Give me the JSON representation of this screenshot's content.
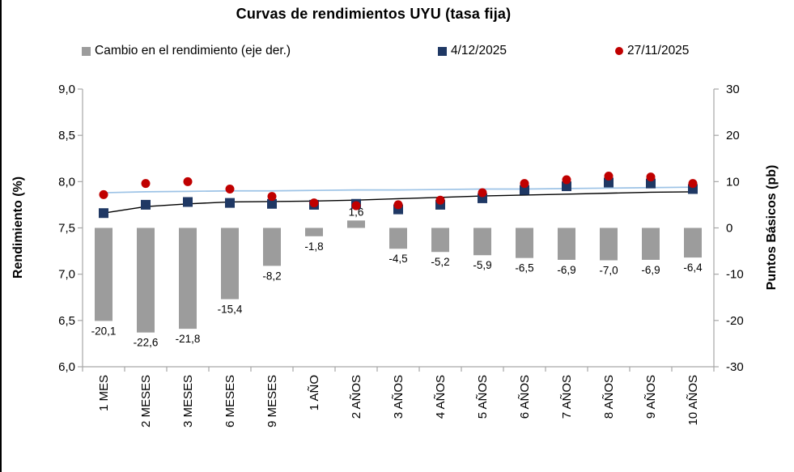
{
  "chart_data": {
    "type": "combo (bar + scatter with smooth lines)",
    "title": "Curvas de rendimientos UYU (tasa fija)",
    "background": "#FFFFFF",
    "grid": false,
    "legend_position": "top",
    "categories": [
      "1 MES",
      "2 MESES",
      "3 MESES",
      "6 MESES",
      "9 MESES",
      "1 AÑO",
      "2 AÑOS",
      "3 AÑOS",
      "4 AÑOS",
      "5 AÑOS",
      "6 AÑOS",
      "7 AÑOS",
      "8 AÑOS",
      "9 AÑOS",
      "10 AÑOS"
    ],
    "left_axis": {
      "title": "Rendimiento (%)",
      "min": 6.0,
      "max": 9.0,
      "step": 0.5,
      "tick_labels": [
        "9,0",
        "8,5",
        "8,0",
        "7,5",
        "7,0",
        "6,5",
        "6,0"
      ]
    },
    "right_axis": {
      "title": "Puntos Básicos (pb)",
      "min": -30,
      "max": 30,
      "step": 10,
      "tick_labels": [
        "30",
        "20",
        "10",
        "0",
        "-10",
        "-20",
        "-30"
      ]
    },
    "series": [
      {
        "name": "Cambio en el rendimiento (eje der.)",
        "type": "bar",
        "axis": "right",
        "color": "#9C9C9C",
        "values": [
          -20.1,
          -22.6,
          -21.8,
          -15.4,
          -8.2,
          -1.8,
          1.6,
          -4.5,
          -5.2,
          -5.9,
          -6.5,
          -6.9,
          -7.0,
          -6.9,
          -6.4
        ],
        "value_labels": [
          "-20,1",
          "-22,6",
          "-21,8",
          "-15,4",
          "-8,2",
          "-1,8",
          "1,6",
          "-4,5",
          "-5,2",
          "-5,9",
          "-6,5",
          "-6,9",
          "-7,0",
          "-6,9",
          "-6,4"
        ]
      },
      {
        "name": "4/12/2025",
        "type": "scatter",
        "marker": "square",
        "axis": "left",
        "color": "#1F3864",
        "values": [
          7.66,
          7.75,
          7.78,
          7.77,
          7.76,
          7.75,
          7.76,
          7.7,
          7.75,
          7.82,
          7.91,
          7.95,
          7.99,
          7.98,
          7.92
        ]
      },
      {
        "name": "27/11/2025",
        "type": "scatter",
        "marker": "circle",
        "axis": "left",
        "color": "#C00000",
        "values": [
          7.86,
          7.98,
          8.0,
          7.92,
          7.84,
          7.77,
          7.74,
          7.75,
          7.8,
          7.88,
          7.98,
          8.02,
          8.06,
          8.05,
          7.98
        ]
      }
    ],
    "smooth_lines": [
      {
        "name": "curva suavizada superior",
        "color": "#9DC3E6",
        "values": [
          7.88,
          7.89,
          7.895,
          7.9,
          7.9,
          7.905,
          7.91,
          7.91,
          7.915,
          7.92,
          7.92,
          7.925,
          7.93,
          7.935,
          7.94
        ]
      },
      {
        "name": "curva suavizada inferior",
        "color": "#000000",
        "values": [
          7.66,
          7.73,
          7.76,
          7.78,
          7.785,
          7.79,
          7.8,
          7.815,
          7.83,
          7.845,
          7.855,
          7.865,
          7.875,
          7.885,
          7.89
        ]
      }
    ]
  },
  "legend": {
    "items": [
      {
        "label": "Cambio en el rendimiento (eje der.)",
        "marker": "square",
        "color": "#9C9C9C"
      },
      {
        "label": "4/12/2025",
        "marker": "square",
        "color": "#1F3864"
      },
      {
        "label": "27/11/2025",
        "marker": "circle",
        "color": "#C00000"
      }
    ]
  },
  "colors": {
    "axis_line": "#A6A6A6",
    "text": "#000000"
  }
}
